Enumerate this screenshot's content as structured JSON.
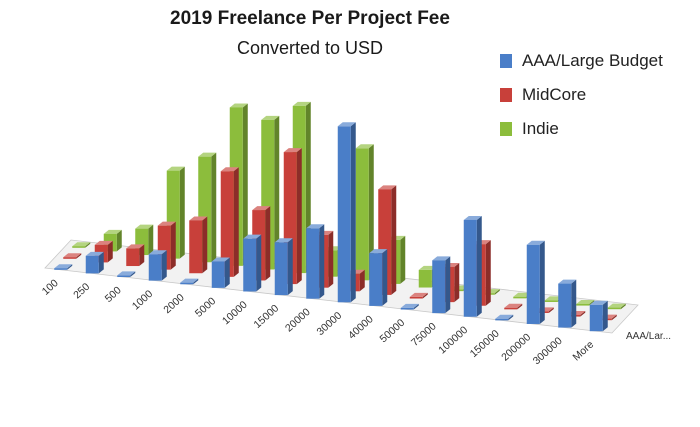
{
  "chart_data": {
    "type": "bar",
    "title": "2019 Freelance Per Project  Fee",
    "subtitle": "Converted to USD",
    "categories": [
      "100",
      "250",
      "500",
      "1000",
      "2000",
      "5000",
      "10000",
      "15000",
      "20000",
      "30000",
      "40000",
      "50000",
      "75000",
      "100000",
      "150000",
      "200000",
      "300000",
      "More"
    ],
    "series": [
      {
        "name": "AAA/Large Budget",
        "color": "#4a7ec8",
        "values": [
          0,
          2,
          0,
          3,
          0,
          3,
          6,
          6,
          8,
          20,
          6,
          0,
          6,
          11,
          0,
          9,
          5,
          3
        ]
      },
      {
        "name": "MidCore",
        "color": "#c8403a",
        "values": [
          0,
          2,
          2,
          5,
          6,
          12,
          8,
          15,
          6,
          2,
          12,
          0,
          4,
          7,
          0,
          0,
          0,
          0
        ]
      },
      {
        "name": "Indie",
        "color": "#8cbd3c",
        "values": [
          0,
          2,
          3,
          10,
          12,
          18,
          17,
          19,
          3,
          15,
          5,
          2,
          0,
          0,
          0,
          0,
          0,
          0
        ]
      }
    ],
    "depth_axis_label": "AAA/Lar...",
    "legend_position": "top-right",
    "grid": false
  },
  "legend_title": "2019 Freelance Per Project  Fee",
  "colors": {
    "aaa": "#4a7ec8",
    "midcore": "#c8403a",
    "indie": "#8cbd3c"
  }
}
